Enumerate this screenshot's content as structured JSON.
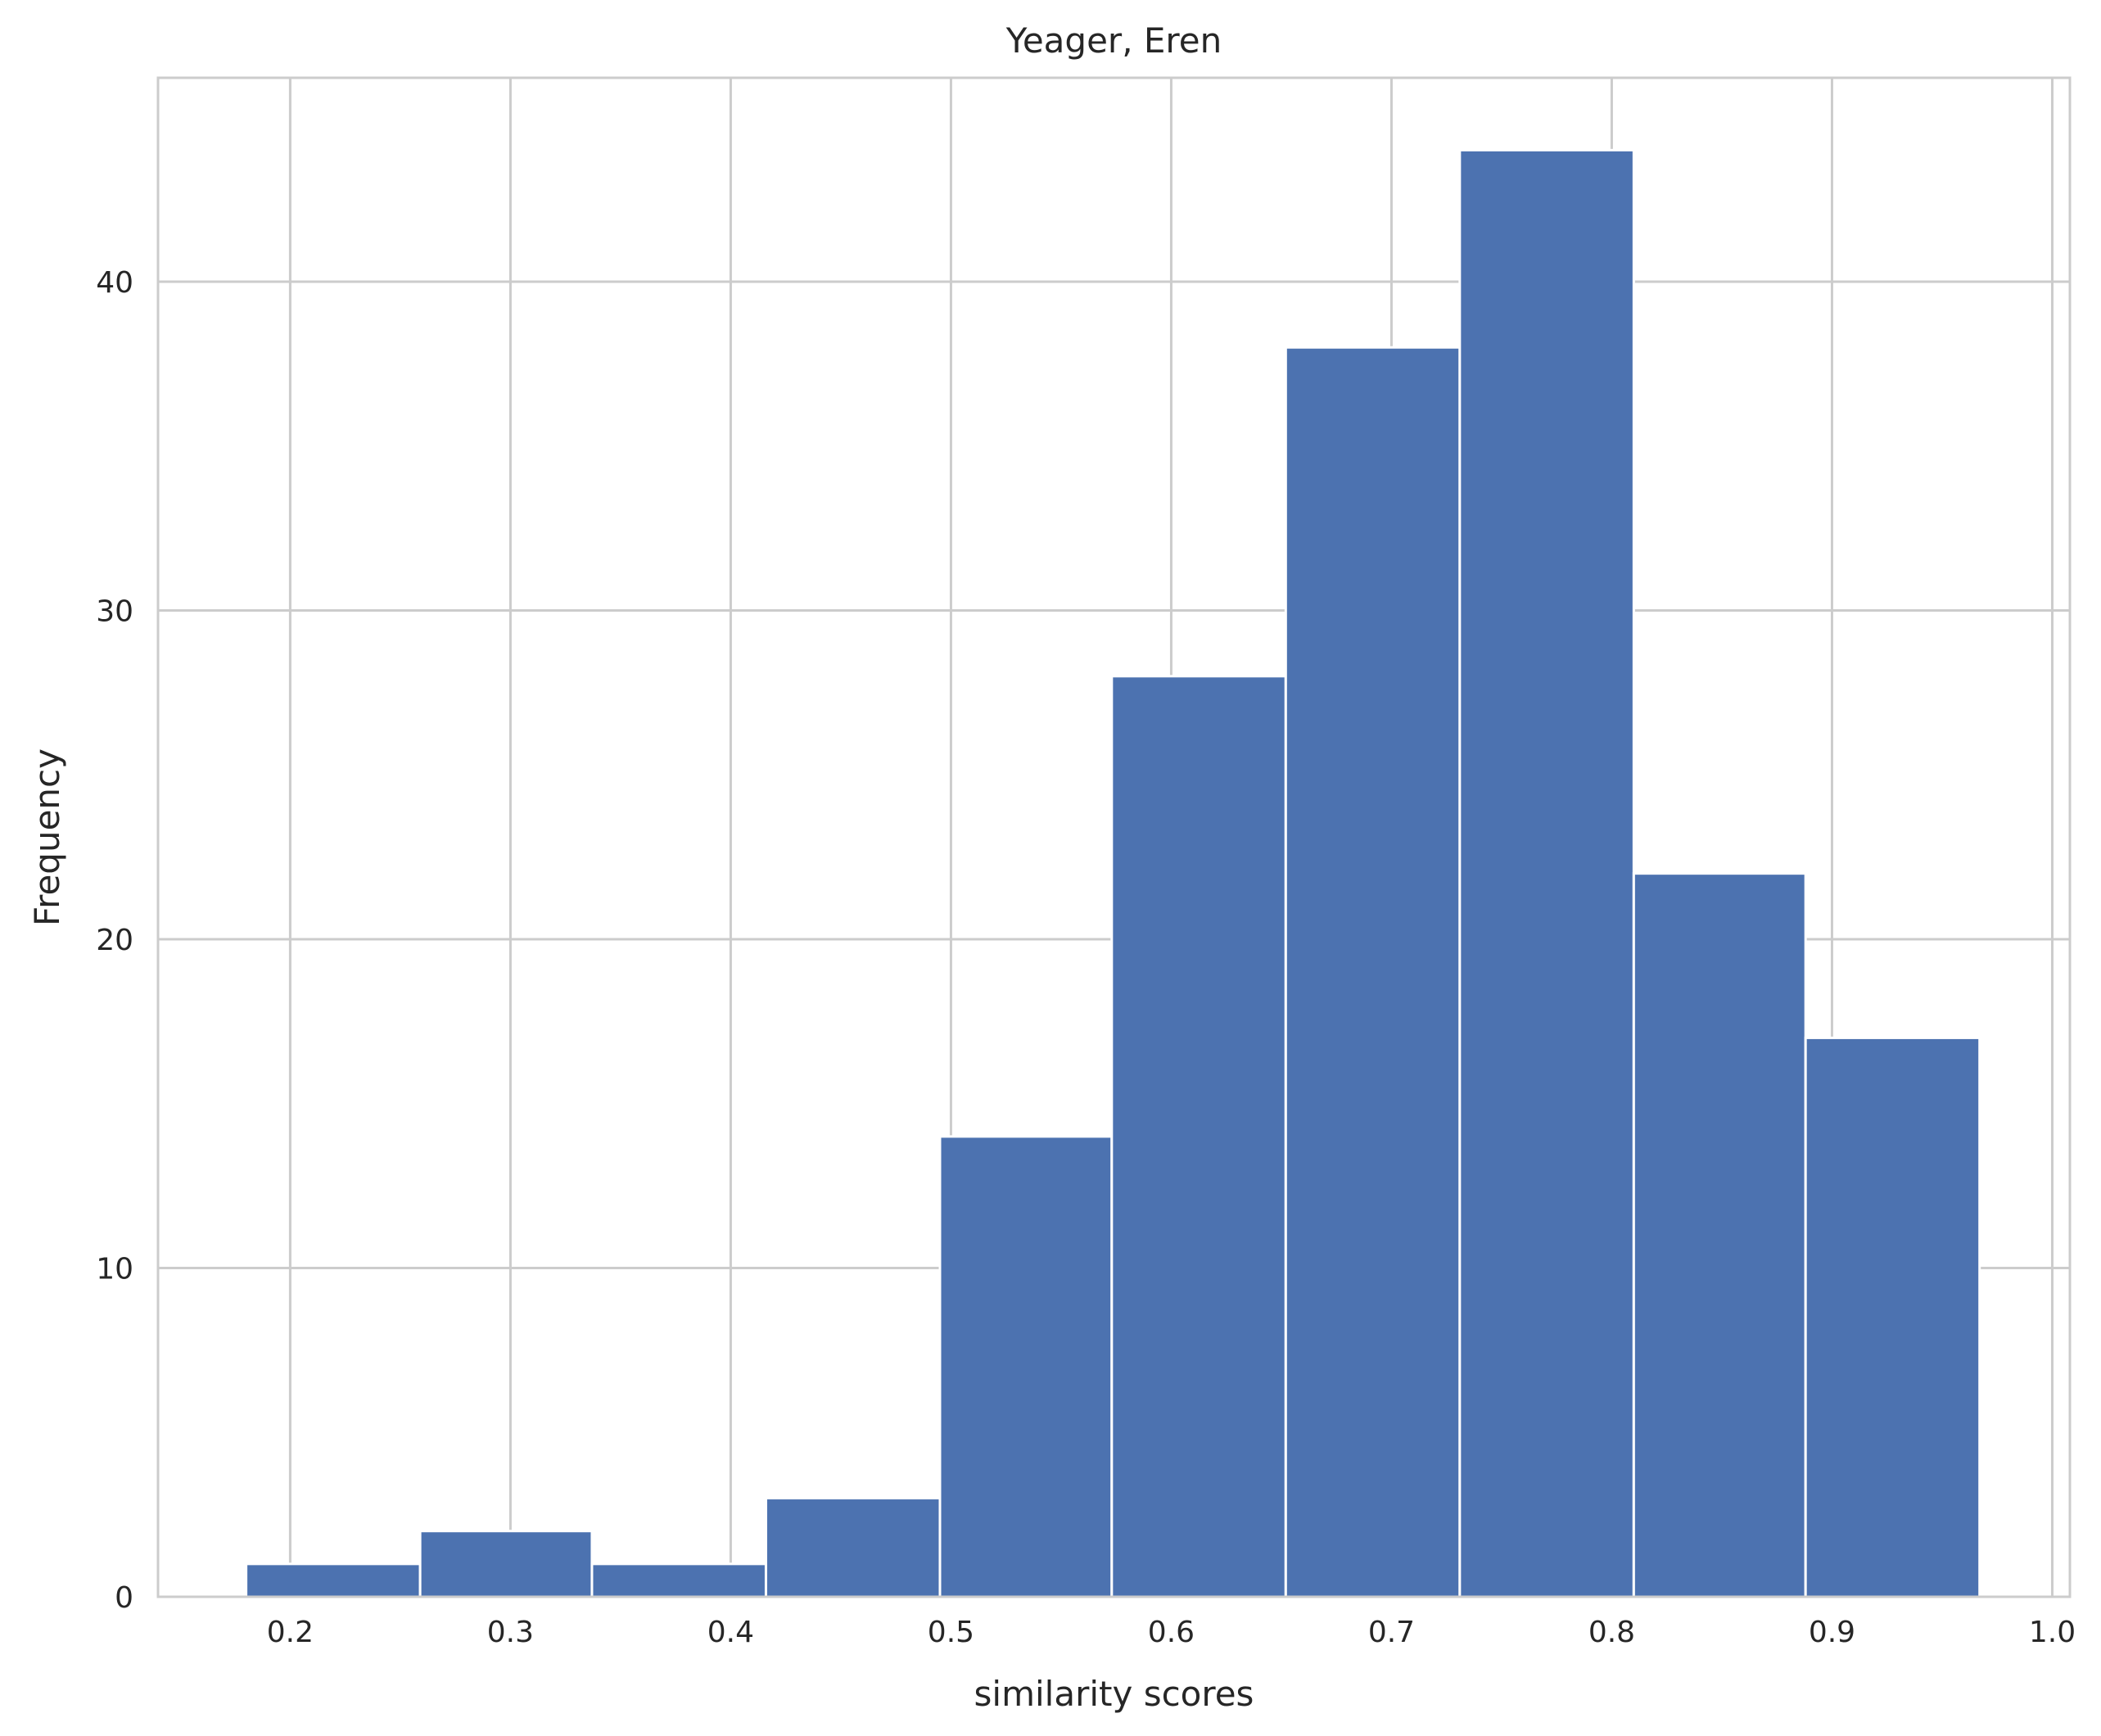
{
  "chart_data": {
    "type": "bar",
    "title": "Yeager, Eren",
    "xlabel": "similarity scores",
    "ylabel": "Frequency",
    "xlim": [
      0.14,
      1.008
    ],
    "ylim": [
      0,
      46.2
    ],
    "grid": true,
    "bar_color": "#4c72b0",
    "grid_color": "#cccccc",
    "bins": [
      {
        "x0": 0.18,
        "x1": 0.259,
        "count": 1
      },
      {
        "x0": 0.259,
        "x1": 0.337,
        "count": 2
      },
      {
        "x0": 0.337,
        "x1": 0.416,
        "count": 1
      },
      {
        "x0": 0.416,
        "x1": 0.495,
        "count": 3
      },
      {
        "x0": 0.495,
        "x1": 0.573,
        "count": 14
      },
      {
        "x0": 0.573,
        "x1": 0.652,
        "count": 28
      },
      {
        "x0": 0.652,
        "x1": 0.731,
        "count": 38
      },
      {
        "x0": 0.731,
        "x1": 0.81,
        "count": 44
      },
      {
        "x0": 0.81,
        "x1": 0.888,
        "count": 22
      },
      {
        "x0": 0.888,
        "x1": 0.967,
        "count": 17
      }
    ],
    "xticks": [
      {
        "value": 0.2,
        "label": "0.2"
      },
      {
        "value": 0.3,
        "label": "0.3"
      },
      {
        "value": 0.4,
        "label": "0.4"
      },
      {
        "value": 0.5,
        "label": "0.5"
      },
      {
        "value": 0.6,
        "label": "0.6"
      },
      {
        "value": 0.7,
        "label": "0.7"
      },
      {
        "value": 0.8,
        "label": "0.8"
      },
      {
        "value": 0.9,
        "label": "0.9"
      },
      {
        "value": 1.0,
        "label": "1.0"
      }
    ],
    "yticks": [
      {
        "value": 0,
        "label": "0"
      },
      {
        "value": 10,
        "label": "10"
      },
      {
        "value": 20,
        "label": "20"
      },
      {
        "value": 30,
        "label": "30"
      },
      {
        "value": 40,
        "label": "40"
      }
    ]
  }
}
